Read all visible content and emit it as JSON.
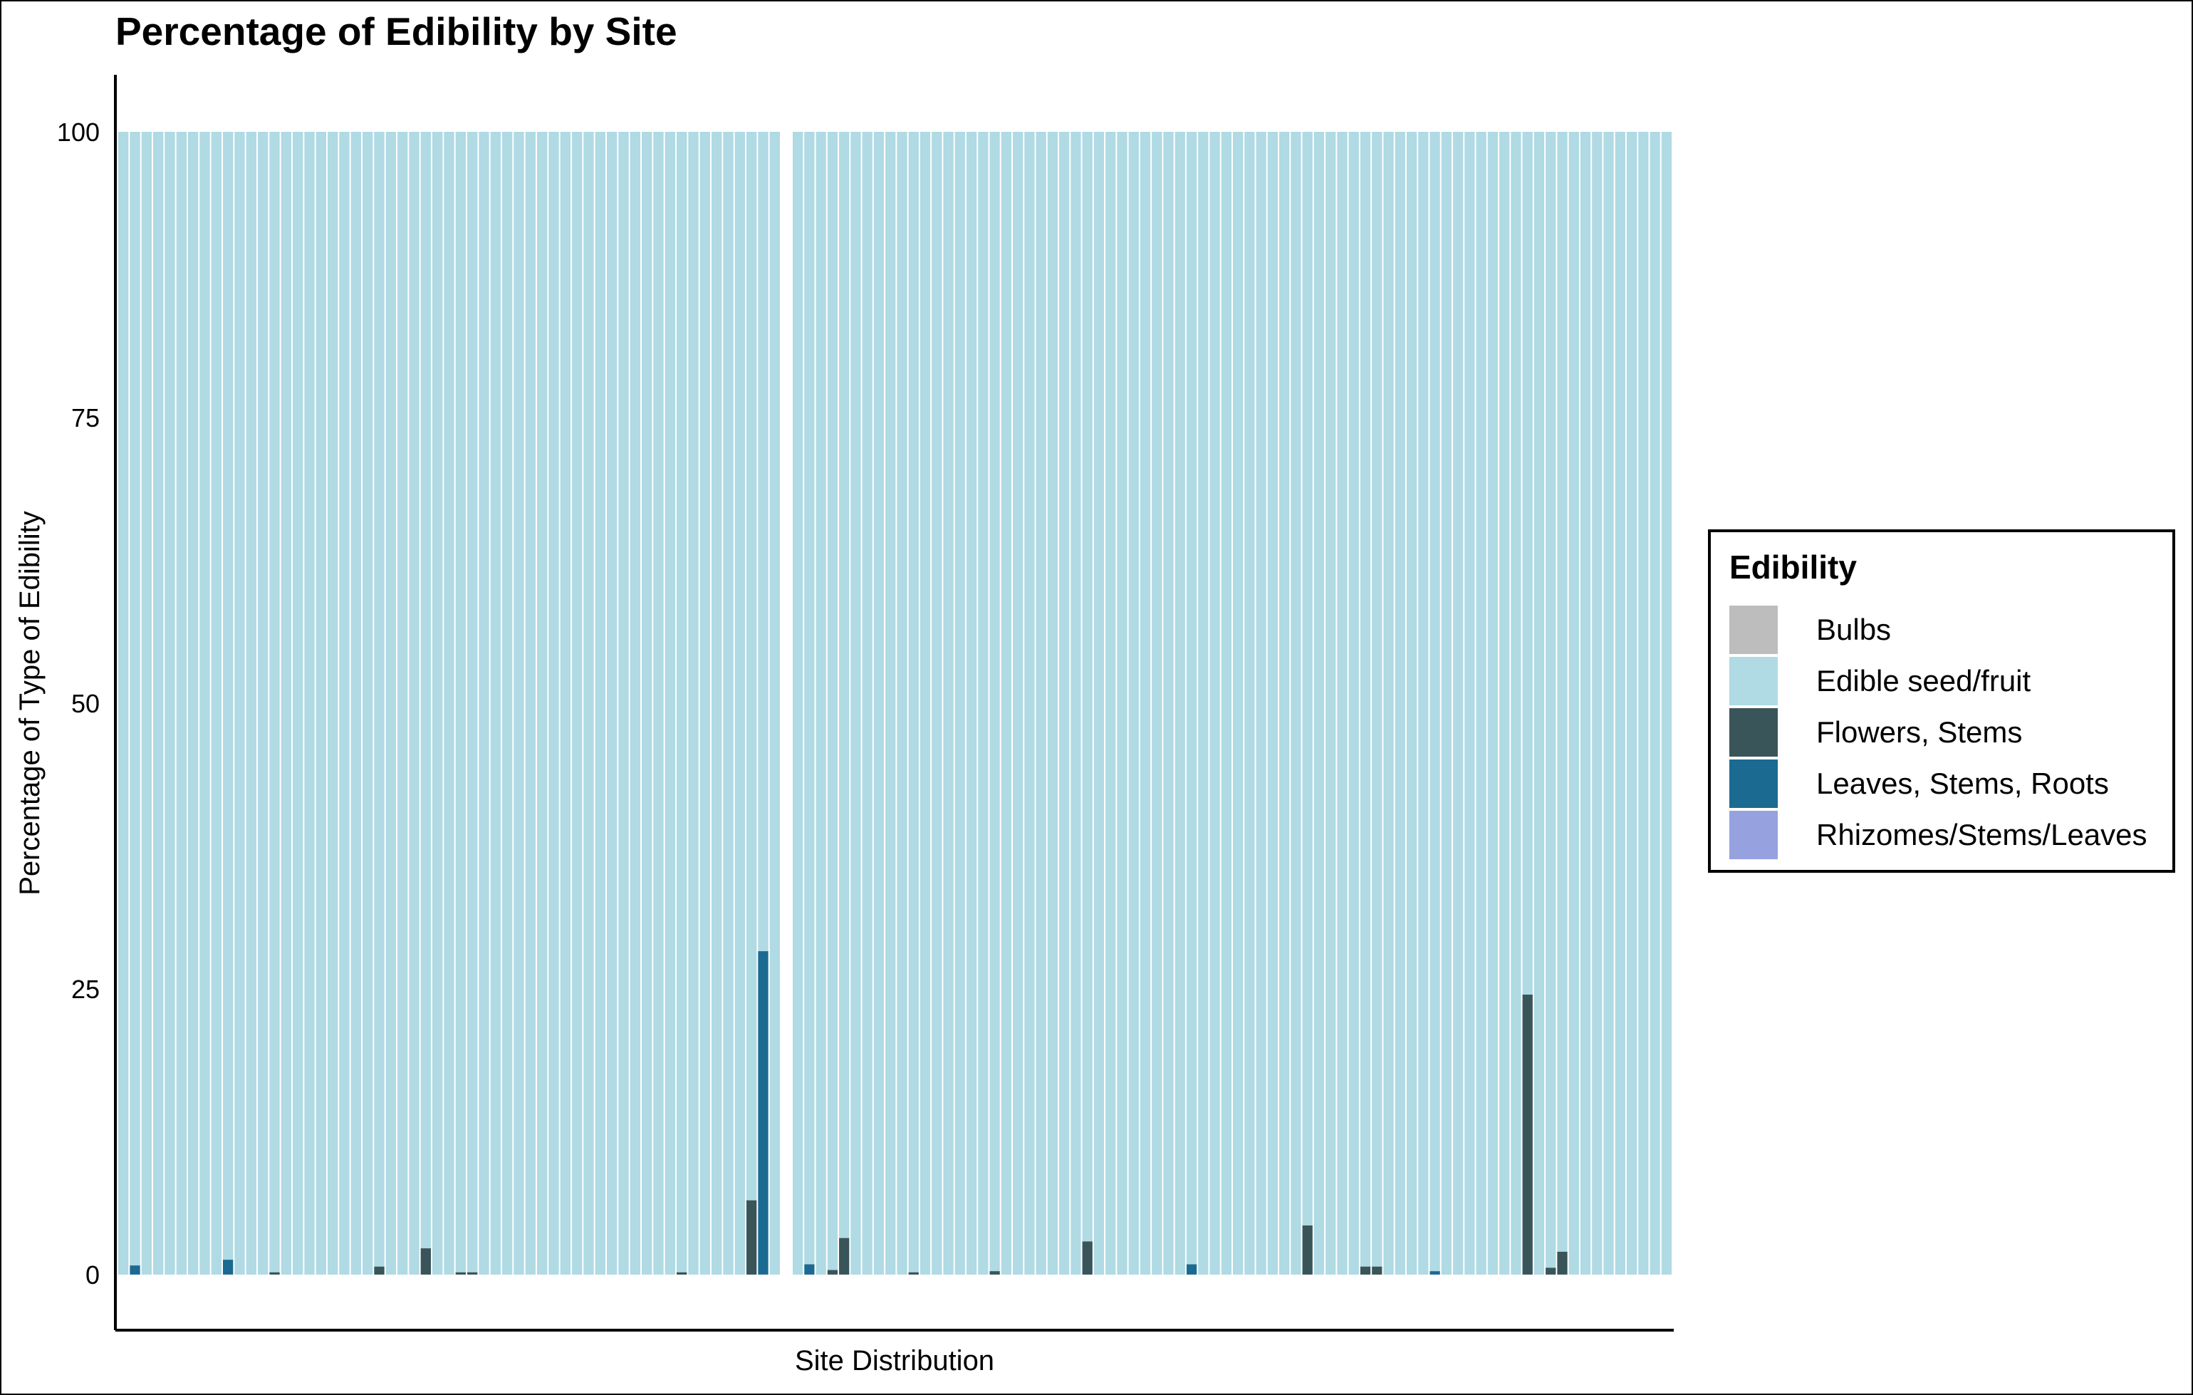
{
  "chart_data": {
    "type": "bar",
    "stacked": true,
    "title": "Percentage of Edibility by Site",
    "xlabel": "Site Distribution",
    "ylabel": "Percentage of Type of Edibility",
    "ylim": [
      0,
      100
    ],
    "yticks": [
      0,
      25,
      50,
      75,
      100
    ],
    "grid": false,
    "legend": {
      "title": "Edibility",
      "placement": "right",
      "entries": [
        "Bulbs",
        "Edible seed/fruit",
        "Flowers, Stems",
        "Leaves, Stems, Roots",
        "Rhizomes/Stems/Leaves"
      ]
    },
    "colors": {
      "Bulbs": "#bdbdbd",
      "Edible seed/fruit": "#b0dae4",
      "Flowers, Stems": "#3a5559",
      "Leaves, Stems, Roots": "#1b6a92",
      "Rhizomes/Stems/Leaves": "#96a1e0",
      "separator": "#ffffff"
    },
    "groups": [
      {
        "site_count": 57,
        "bars": [
          {
            "site": 2,
            "category": "Leaves, Stems, Roots",
            "value": 0.8
          },
          {
            "site": 10,
            "category": "Leaves, Stems, Roots",
            "value": 1.3
          },
          {
            "site": 14,
            "category": "Flowers, Stems",
            "value": 0.2
          },
          {
            "site": 23,
            "category": "Flowers, Stems",
            "value": 0.7
          },
          {
            "site": 27,
            "category": "Flowers, Stems",
            "value": 2.3
          },
          {
            "site": 30,
            "category": "Flowers, Stems",
            "value": 0.2
          },
          {
            "site": 31,
            "category": "Flowers, Stems",
            "value": 0.2
          },
          {
            "site": 49,
            "category": "Flowers, Stems",
            "value": 0.2
          },
          {
            "site": 55,
            "category": "Flowers, Stems",
            "value": 6.5
          },
          {
            "site": 56,
            "category": "Leaves, Stems, Roots",
            "value": 28.3
          }
        ]
      },
      {
        "site_count": 76,
        "bars": [
          {
            "site": 2,
            "category": "Leaves, Stems, Roots",
            "value": 0.9
          },
          {
            "site": 4,
            "category": "Flowers, Stems",
            "value": 0.4
          },
          {
            "site": 5,
            "category": "Flowers, Stems",
            "value": 3.2
          },
          {
            "site": 11,
            "category": "Flowers, Stems",
            "value": 0.2
          },
          {
            "site": 18,
            "category": "Flowers, Stems",
            "value": 0.3
          },
          {
            "site": 26,
            "category": "Flowers, Stems",
            "value": 2.9
          },
          {
            "site": 35,
            "category": "Leaves, Stems, Roots",
            "value": 0.9
          },
          {
            "site": 45,
            "category": "Flowers, Stems",
            "value": 4.3
          },
          {
            "site": 50,
            "category": "Flowers, Stems",
            "value": 0.7
          },
          {
            "site": 51,
            "category": "Flowers, Stems",
            "value": 0.7
          },
          {
            "site": 56,
            "category": "Leaves, Stems, Roots",
            "value": 0.3
          },
          {
            "site": 64,
            "category": "Flowers, Stems",
            "value": 24.5
          },
          {
            "site": 66,
            "category": "Flowers, Stems",
            "value": 0.6
          },
          {
            "site": 67,
            "category": "Flowers, Stems",
            "value": 2.0
          }
        ]
      }
    ]
  }
}
